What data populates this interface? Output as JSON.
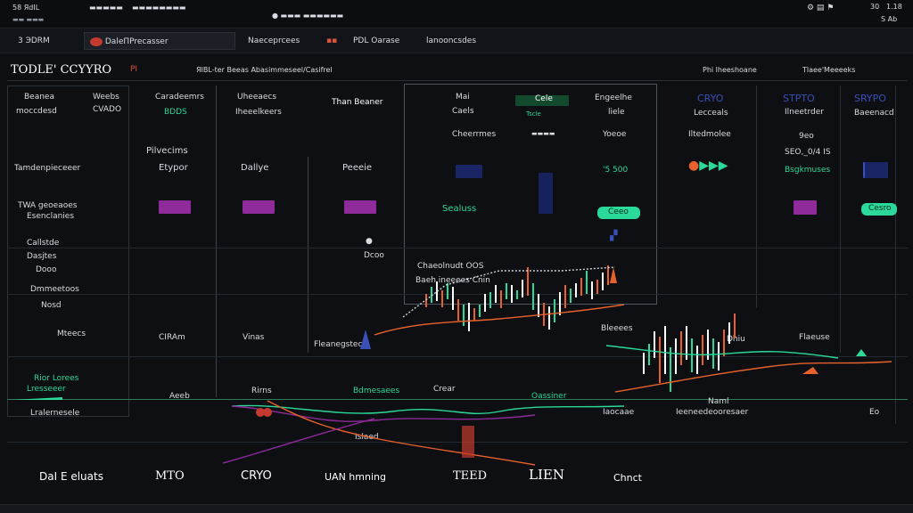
{
  "topbar": {
    "left_title": "58 ЯdIL",
    "left_item2": "",
    "left_item3": "",
    "center_status": "",
    "right_code": "30",
    "right_value": "1.18",
    "right_label": "S Ab"
  },
  "tabs": [
    {
      "label": "3 ЭDRM",
      "active": false
    },
    {
      "label": "DaleПPrecasser",
      "active": true
    },
    {
      "label": "Naeceprcees",
      "active": false
    },
    {
      "label": "PDL Oarase",
      "active": false
    },
    {
      "label": "lanooncsdes",
      "active": false
    }
  ],
  "toolbar": {
    "title": "TODLE' CCYYRO",
    "code": "PI",
    "breadcrumb": "ЯIBL-ter Beeas Abasimmeseel/Casifrel",
    "right1": "Phi lheeshoane",
    "right2": "Tlaee'Meeeeks"
  },
  "header_row": [
    {
      "label": "Beanea",
      "sub": "moccdesd"
    },
    {
      "label": "Weebs",
      "sub": "CVADO"
    },
    {
      "label": "Caradeemrs",
      "sub": "BDDS"
    },
    {
      "label": "Uheeaecs",
      "sub": "Iheeelkeers"
    },
    {
      "label": "Than Beaner",
      "sub": ""
    },
    {
      "label": "Mai",
      "sub": "Caels"
    },
    {
      "label": "Cele",
      "sub": "Tscle"
    },
    {
      "label": "Engeelhe",
      "sub": "liele"
    },
    {
      "label": "CRYO",
      "sub": "Lecceals"
    },
    {
      "label": "STPTO",
      "sub": "Ilneetrder"
    },
    {
      "label": "SRYPO",
      "sub": "Baeenacd"
    }
  ],
  "rows": {
    "r1_left": "Tamdenpieceeer",
    "r1_mid_title": "Pilvecims",
    "r1_c1": "Etypor",
    "r1_c2": "Dallye",
    "r1_c3": "Peeeie",
    "r1_right_val": "'5 500",
    "r1_right_label": "Cheerrmes",
    "r1_far_right": "SEO,_0/4 IS",
    "r1_far_right_sub": "Bsgkmuses",
    "r2_left1": "TWA geoeaoes",
    "r2_left2": "Esenclanies",
    "r2_mid": "Sealuss",
    "r2_button": "Ceeo",
    "r2_button2": "Cesro",
    "r3_left1": "Callstde",
    "r3_left2": "Dasjtes",
    "r3_mid_label": "Dcoo",
    "r3_mid_label2": "Dooo",
    "r4_left": "Dmmeetoos",
    "r4_sub": "Nosd",
    "mid_panel_title": "Chaeolnudt OOS",
    "mid_panel_sub": "Baeh ineeees Cnin",
    "r5_a": "Mteecs",
    "r5_b": "CIRAm",
    "r5_c": "Vinas",
    "r5_d": "Fleanegstecs",
    "r5_e": "Bleeees",
    "r5_f": "Dhiu",
    "r5_g": "Flaeuse",
    "r6_left1": "Rior Lorees",
    "r6_left2": "Lresseeer",
    "r6_a": "Aeeb",
    "r6_b": "Rirns",
    "r6_c": "Bdmesaees",
    "r6_d": "Crear",
    "r6_e": "Oassiner",
    "r7_left": "Lralernesele",
    "r7_a": "Iaocaae",
    "r7_b": "Ieeneedeooresaer",
    "r7_c": "Naml",
    "r7_d": "Eo",
    "r8_a": "Islaed"
  },
  "bottom_labels": [
    "DaI E eluats",
    "MTO",
    "CRYO",
    "UAN hmning",
    "TEED",
    "LIEN",
    "Chnct"
  ],
  "colors": {
    "accent_green": "#2bd99a",
    "accent_purple": "#8e2a9a",
    "accent_orange": "#e8612c",
    "accent_blue": "#2c3a86",
    "bg": "#0d0f12"
  }
}
